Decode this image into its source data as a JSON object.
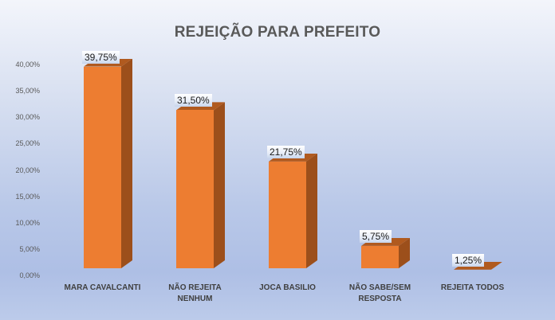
{
  "chart_data": {
    "type": "bar",
    "title": "REJEIÇÃO PARA PREFEITO",
    "xlabel": "",
    "ylabel": "",
    "categories": [
      "MARA CAVALCANTI",
      "NÃO REJEITA NENHUM",
      "JOCA BASILIO",
      "NÃO SABE/SEM RESPOSTA",
      "REJEITA TODOS"
    ],
    "category_lines": [
      [
        "MARA CAVALCANTI"
      ],
      [
        "NÃO REJEITA",
        "NENHUM"
      ],
      [
        "JOCA BASILIO"
      ],
      [
        "NÃO SABE/SEM",
        "RESPOSTA"
      ],
      [
        "REJEITA TODOS"
      ]
    ],
    "values": [
      39.75,
      31.5,
      21.75,
      5.75,
      1.25
    ],
    "data_labels": [
      "39,75%",
      "31,50%",
      "21,75%",
      "5,75%",
      "1,25%"
    ],
    "ylim": [
      0,
      40
    ],
    "yticks": [
      "0,00%",
      "5,00%",
      "10,00%",
      "15,00%",
      "20,00%",
      "25,00%",
      "30,00%",
      "35,00%",
      "40,00%"
    ],
    "grid": false,
    "legend": "none",
    "style": "3d-column",
    "colors": {
      "bar_front": "#ed7d31",
      "bar_side": "#9c4f1b",
      "bar_top": "#b05a1f",
      "title": "#595959"
    }
  }
}
